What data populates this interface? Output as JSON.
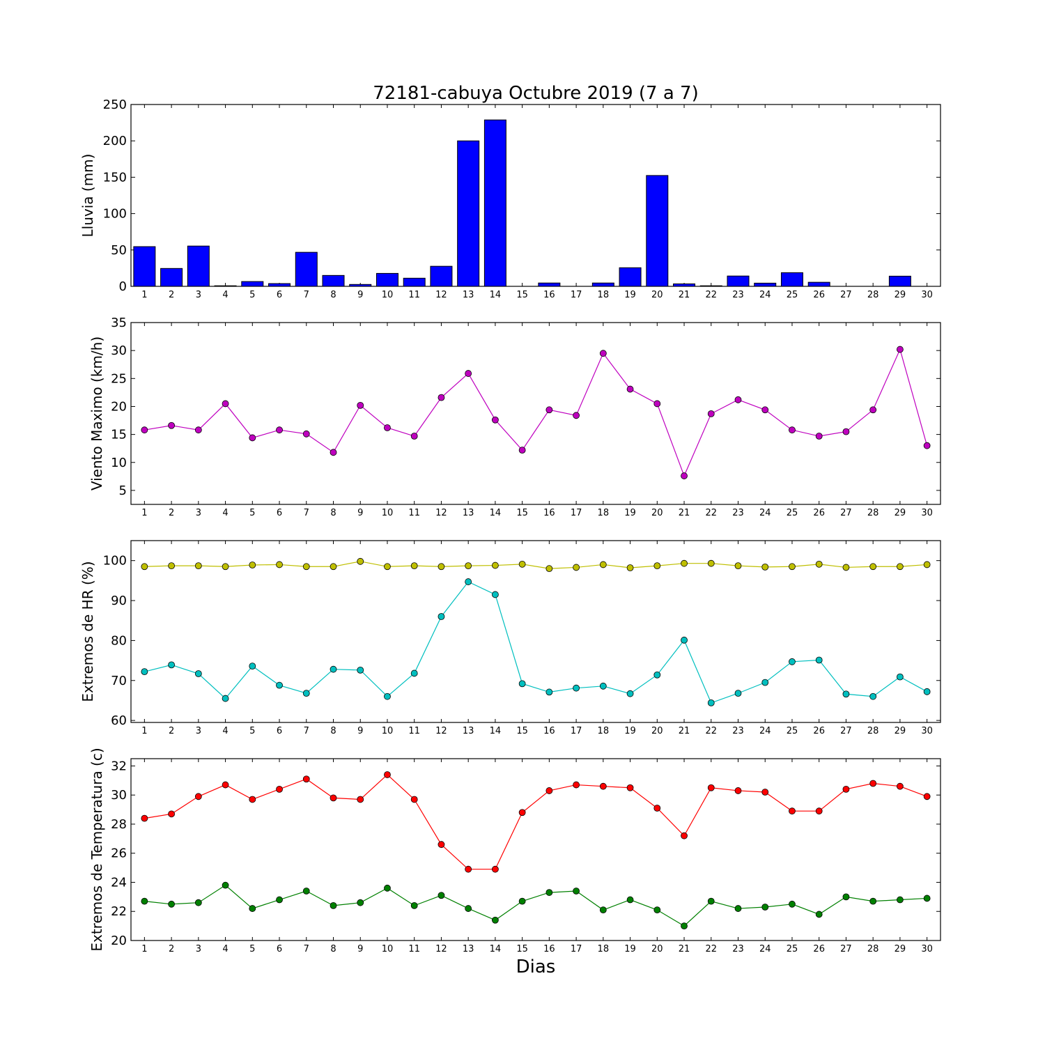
{
  "title": "72181-cabuya Octubre 2019  (7 a 7)",
  "xlabel": "Dias",
  "chart_data": [
    {
      "type": "bar",
      "ylabel": "Lluvia (mm)",
      "ylim": [
        0,
        250
      ],
      "yticks": [
        0,
        50,
        100,
        150,
        200,
        250
      ],
      "categories": [
        1,
        2,
        3,
        4,
        5,
        6,
        7,
        8,
        9,
        10,
        11,
        12,
        13,
        14,
        15,
        16,
        17,
        18,
        19,
        20,
        21,
        22,
        23,
        24,
        25,
        26,
        27,
        28,
        29,
        30
      ],
      "series": [
        {
          "values": [
            54.6,
            24.6,
            55.4,
            0.8,
            6.6,
            3.8,
            46.8,
            15.0,
            2.6,
            17.8,
            11.2,
            27.6,
            200.0,
            228.8,
            0.0,
            4.6,
            0.0,
            4.6,
            25.6,
            152.4,
            3.4,
            0.8,
            14.2,
            4.4,
            18.8,
            5.6,
            0.0,
            0.0,
            14.0,
            0.0
          ],
          "color": "#0000ff"
        }
      ]
    },
    {
      "type": "line",
      "ylabel": "Viento Maximo (km/h)",
      "ylim": [
        2.5,
        35
      ],
      "yticks": [
        5,
        10,
        15,
        20,
        25,
        30,
        35
      ],
      "x": [
        1,
        2,
        3,
        4,
        5,
        6,
        7,
        8,
        9,
        10,
        11,
        12,
        13,
        14,
        15,
        16,
        17,
        18,
        19,
        20,
        21,
        22,
        23,
        24,
        25,
        26,
        27,
        28,
        29,
        30
      ],
      "series": [
        {
          "values": [
            15.8,
            16.6,
            15.8,
            20.5,
            14.4,
            15.8,
            15.1,
            11.8,
            20.2,
            16.2,
            14.7,
            21.6,
            25.9,
            17.6,
            12.2,
            19.4,
            18.4,
            29.5,
            23.1,
            20.5,
            7.6,
            18.7,
            21.2,
            19.4,
            15.8,
            14.7,
            15.5,
            19.4,
            30.2,
            13.0
          ],
          "color": "#bf00bf"
        }
      ]
    },
    {
      "type": "line",
      "ylabel": "Extremos de HR (%)",
      "ylim": [
        59.5,
        105
      ],
      "yticks": [
        60,
        70,
        80,
        90,
        100
      ],
      "x": [
        1,
        2,
        3,
        4,
        5,
        6,
        7,
        8,
        9,
        10,
        11,
        12,
        13,
        14,
        15,
        16,
        17,
        18,
        19,
        20,
        21,
        22,
        23,
        24,
        25,
        26,
        27,
        28,
        29,
        30
      ],
      "series": [
        {
          "values": [
            98.5,
            98.7,
            98.7,
            98.5,
            98.9,
            99.0,
            98.5,
            98.5,
            99.8,
            98.5,
            98.7,
            98.5,
            98.7,
            98.8,
            99.1,
            98.0,
            98.3,
            99.0,
            98.2,
            98.7,
            99.3,
            99.3,
            98.7,
            98.4,
            98.5,
            99.1,
            98.3,
            98.5,
            98.5,
            99.0
          ],
          "color": "#bfbf00"
        },
        {
          "values": [
            72.2,
            73.9,
            71.7,
            65.5,
            73.6,
            68.8,
            66.8,
            72.8,
            72.6,
            66.0,
            71.8,
            86.0,
            94.7,
            91.5,
            69.2,
            67.1,
            68.1,
            68.6,
            66.7,
            71.4,
            80.1,
            64.4,
            66.8,
            69.5,
            74.7,
            75.1,
            66.6,
            66.0,
            70.9,
            67.2
          ],
          "color": "#00bfbf"
        }
      ]
    },
    {
      "type": "line",
      "ylabel": "Extremos de Temperatura (c)",
      "ylim": [
        20,
        32.5
      ],
      "yticks": [
        20,
        22,
        24,
        26,
        28,
        30,
        32
      ],
      "x": [
        1,
        2,
        3,
        4,
        5,
        6,
        7,
        8,
        9,
        10,
        11,
        12,
        13,
        14,
        15,
        16,
        17,
        18,
        19,
        20,
        21,
        22,
        23,
        24,
        25,
        26,
        27,
        28,
        29,
        30
      ],
      "series": [
        {
          "values": [
            28.4,
            28.7,
            29.9,
            30.7,
            29.7,
            30.4,
            31.1,
            29.8,
            29.7,
            31.4,
            29.7,
            26.6,
            24.9,
            24.9,
            28.8,
            30.3,
            30.7,
            30.6,
            30.5,
            29.1,
            27.2,
            30.5,
            30.3,
            30.2,
            28.9,
            28.9,
            30.4,
            30.8,
            30.6,
            29.9
          ],
          "color": "#ff0000"
        },
        {
          "values": [
            22.7,
            22.5,
            22.6,
            23.8,
            22.2,
            22.8,
            23.4,
            22.4,
            22.6,
            23.6,
            22.4,
            23.1,
            22.2,
            21.4,
            22.7,
            23.3,
            23.4,
            22.1,
            22.8,
            22.1,
            21.0,
            22.7,
            22.2,
            22.3,
            22.5,
            21.8,
            23.0,
            22.7,
            22.8,
            22.9
          ],
          "color": "#008000"
        }
      ]
    }
  ]
}
